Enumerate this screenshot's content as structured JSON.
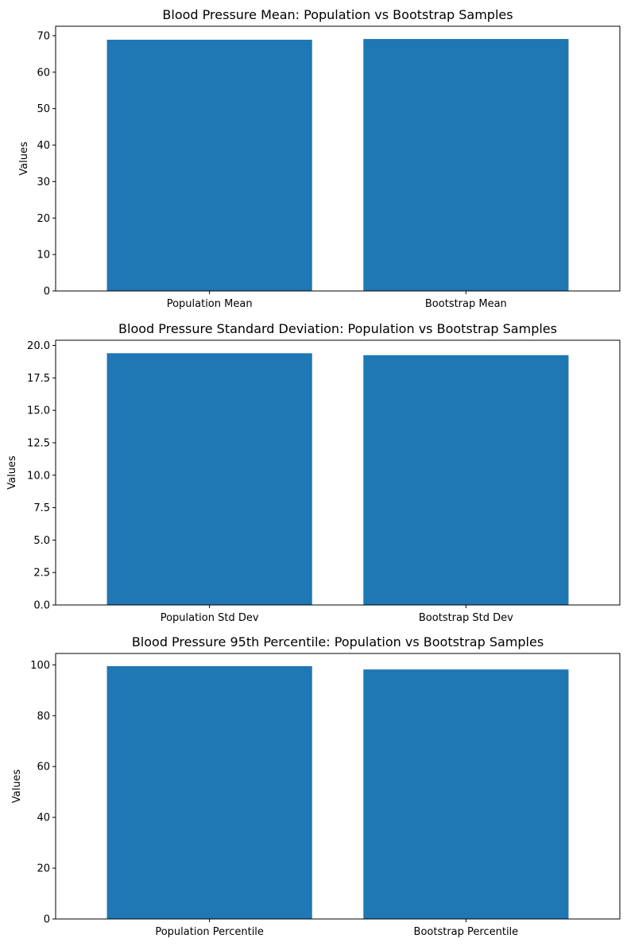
{
  "bar_color": "#1f77b4",
  "chart_data": [
    {
      "type": "bar",
      "title": "Blood Pressure Mean: Population vs Bootstrap Samples",
      "xlabel": "",
      "ylabel": "Values",
      "categories": [
        "Population Mean",
        "Bootstrap Mean"
      ],
      "values": [
        68.9,
        69.1
      ],
      "ylim": [
        0,
        72.6
      ],
      "yticks": [
        0,
        10,
        20,
        30,
        40,
        50,
        60,
        70
      ],
      "ytick_labels": [
        "0",
        "10",
        "20",
        "30",
        "40",
        "50",
        "60",
        "70"
      ],
      "grid": false,
      "legend": "none"
    },
    {
      "type": "bar",
      "title": "Blood Pressure Standard Deviation: Population vs Bootstrap Samples",
      "xlabel": "",
      "ylabel": "Values",
      "categories": [
        "Population Std Dev",
        "Bootstrap Std Dev"
      ],
      "values": [
        19.4,
        19.25
      ],
      "ylim": [
        0,
        20.4
      ],
      "yticks": [
        0,
        2.5,
        5,
        7.5,
        10,
        12.5,
        15,
        17.5,
        20
      ],
      "ytick_labels": [
        "0.0",
        "2.5",
        "5.0",
        "7.5",
        "10.0",
        "12.5",
        "15.0",
        "17.5",
        "20.0"
      ],
      "grid": false,
      "legend": "none"
    },
    {
      "type": "bar",
      "title": "Blood Pressure 95th Percentile: Population vs Bootstrap Samples",
      "xlabel": "",
      "ylabel": "Values",
      "categories": [
        "Population Percentile",
        "Bootstrap Percentile"
      ],
      "values": [
        99.5,
        98.2
      ],
      "ylim": [
        0,
        104.5
      ],
      "yticks": [
        0,
        20,
        40,
        60,
        80,
        100
      ],
      "ytick_labels": [
        "0",
        "20",
        "40",
        "60",
        "80",
        "100"
      ],
      "grid": false,
      "legend": "none"
    }
  ]
}
